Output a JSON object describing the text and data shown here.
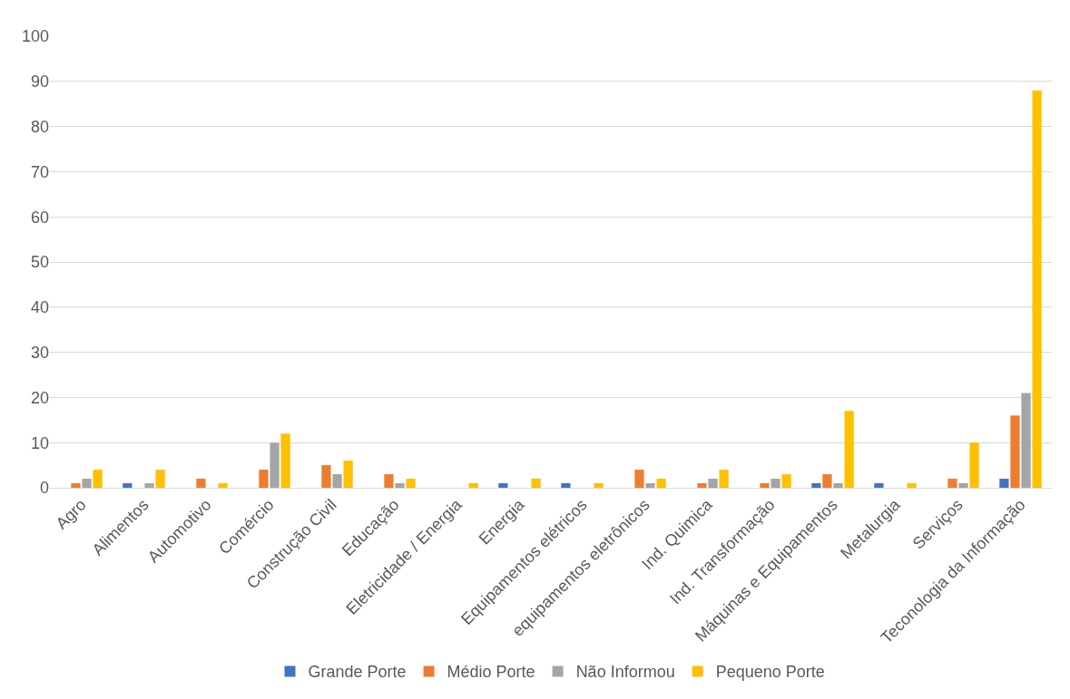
{
  "chart_data": {
    "type": "bar",
    "categories": [
      "Agro",
      "Alimentos",
      "Automotivo",
      "Comércio",
      "Construção Civil",
      "Educação",
      "Eletricidade / Energia",
      "Energia",
      "Equipamentos elétricos",
      "equipamentos eletrônicos",
      "Ind. Quimica",
      "Ind. Transformação",
      "Máquinas e Equipamentos",
      "Metalurgia",
      "Serviços",
      "Teconologia da Informação"
    ],
    "series": [
      {
        "name": "Grande Porte",
        "color": "#4472c4",
        "values": [
          0,
          1,
          0,
          0,
          0,
          0,
          0,
          1,
          1,
          0,
          0,
          0,
          1,
          1,
          0,
          2
        ]
      },
      {
        "name": "Médio Porte",
        "color": "#ed7d31",
        "values": [
          1,
          0,
          2,
          4,
          5,
          3,
          0,
          0,
          0,
          4,
          1,
          1,
          3,
          0,
          2,
          16
        ]
      },
      {
        "name": "Não Informou",
        "color": "#a5a5a5",
        "values": [
          2,
          1,
          0,
          10,
          3,
          1,
          0,
          0,
          0,
          1,
          2,
          2,
          1,
          0,
          1,
          21
        ]
      },
      {
        "name": "Pequeno Porte",
        "color": "#ffc000",
        "values": [
          4,
          4,
          1,
          12,
          6,
          2,
          1,
          2,
          1,
          2,
          4,
          3,
          17,
          1,
          10,
          88
        ]
      }
    ],
    "ylim": [
      0,
      100
    ],
    "yticks": [
      0,
      10,
      20,
      30,
      40,
      50,
      60,
      70,
      80,
      90,
      100
    ],
    "grid": "y",
    "legend": "bottom"
  }
}
